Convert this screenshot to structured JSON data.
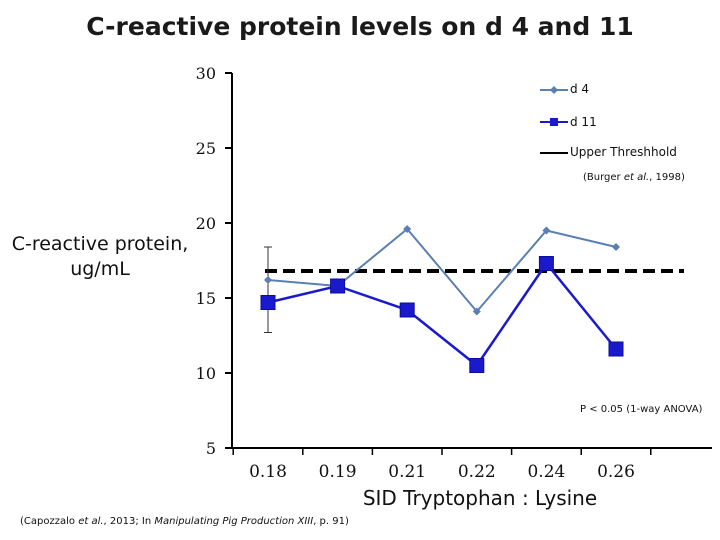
{
  "chart_data": {
    "type": "line",
    "title": "C-reactive protein levels on d 4 and 11",
    "ylabel_line1": "C-reactive protein,",
    "ylabel_line2": "ug/mL",
    "xlabel": "SID Tryptophan : Lysine",
    "categories": [
      "0.18",
      "0.19",
      "0.21",
      "0.22",
      "0.24",
      "0.26"
    ],
    "ylim": [
      5,
      30
    ],
    "yticks": [
      5,
      10,
      15,
      20,
      25,
      30
    ],
    "series": [
      {
        "name": "d 4",
        "values": [
          16.2,
          15.8,
          19.6,
          14.1,
          19.5,
          18.4
        ],
        "color": "#5b7fb3",
        "marker": "diamond"
      },
      {
        "name": "d 11",
        "values": [
          14.7,
          15.8,
          14.2,
          10.5,
          17.3,
          11.6
        ],
        "color": "#1a1acc",
        "marker": "square"
      }
    ],
    "threshold": {
      "name": "Upper Threshhold",
      "value": 16.8,
      "color": "#000000",
      "style": "dashed"
    },
    "error_bar": {
      "category": "0.18",
      "low": 12.7,
      "high": 18.4
    },
    "legend_position": "top-right"
  },
  "legend_note": {
    "prefix": "(Burger ",
    "italic": "et al.",
    "suffix": ", 1998)"
  },
  "p_value_note": "P < 0.05 (1-way ANOVA)",
  "footer": {
    "prefix": "(Capozzalo ",
    "italic1": "et al.",
    "middle": ", 2013; In ",
    "italic2": "Manipulating Pig Production XIII",
    "suffix": ", p. 91)"
  }
}
